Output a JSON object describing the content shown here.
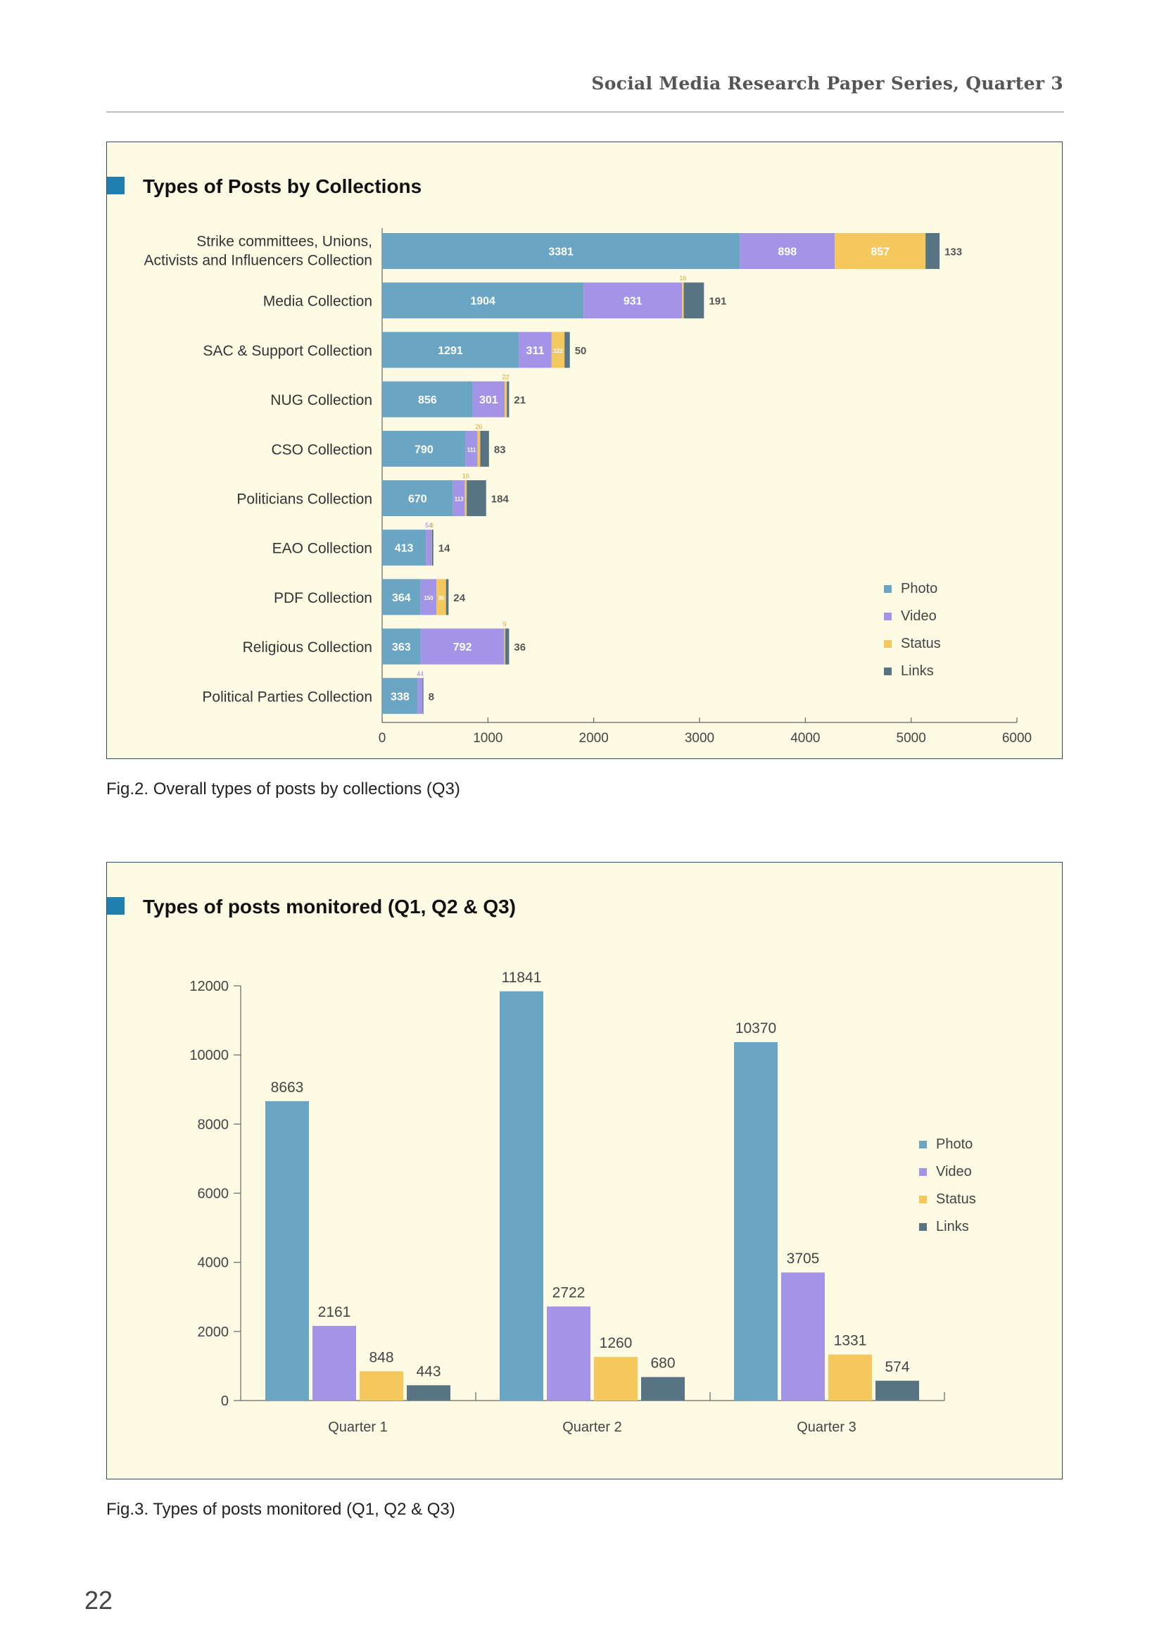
{
  "header": {
    "title": "Social Media Research Paper Series, Quarter 3"
  },
  "page_number": "22",
  "colors": {
    "photo": "#6aa5c3",
    "video": "#a394e8",
    "status": "#f5c85e",
    "links": "#587483",
    "panel_bg": "#fdfbe4",
    "title_marker": "#1f7fb0"
  },
  "figures": [
    {
      "title": "Types of Posts by Collections",
      "caption": "Fig.2. Overall types of posts by collections (Q3)"
    },
    {
      "title": "Types of posts monitored (Q1, Q2 & Q3)",
      "caption": "Fig.3. Types of posts monitored (Q1, Q2 & Q3)"
    }
  ],
  "chart_data": [
    {
      "type": "bar",
      "orientation": "horizontal",
      "stacked": true,
      "title": "Types of Posts by Collections",
      "categories": [
        "Strike committees, Unions,|Activists and Influencers Collection",
        "Media Collection",
        "SAC & Support Collection",
        "NUG Collection",
        "CSO Collection",
        "Politicians Collection",
        "EAO Collection",
        "PDF Collection",
        "Religious Collection",
        "Political Parties Collection"
      ],
      "series": [
        {
          "name": "Photo",
          "values": [
            3381,
            1904,
            1291,
            856,
            790,
            670,
            413,
            364,
            363,
            338
          ]
        },
        {
          "name": "Video",
          "values": [
            898,
            931,
            311,
            301,
            111,
            113,
            54,
            150,
            792,
            44
          ]
        },
        {
          "name": "Status",
          "values": [
            857,
            16,
            122,
            22,
            26,
            16,
            3,
            90,
            9,
            0
          ]
        },
        {
          "name": "Links",
          "values": [
            133,
            191,
            50,
            21,
            83,
            184,
            14,
            24,
            36,
            8
          ]
        }
      ],
      "xlim": [
        0,
        6000
      ],
      "xticks": [
        0,
        1000,
        2000,
        3000,
        4000,
        5000,
        6000
      ],
      "legend": "bottom-right"
    },
    {
      "type": "bar",
      "title": "Types of posts monitored (Q1, Q2 & Q3)",
      "categories": [
        "Quarter 1",
        "Quarter 2",
        "Quarter 3"
      ],
      "series": [
        {
          "name": "Photo",
          "values": [
            8663,
            11841,
            10370
          ]
        },
        {
          "name": "Video",
          "values": [
            2161,
            2722,
            3705
          ]
        },
        {
          "name": "Status",
          "values": [
            848,
            1260,
            1331
          ]
        },
        {
          "name": "Links",
          "values": [
            443,
            680,
            574
          ]
        }
      ],
      "ylim": [
        0,
        12000
      ],
      "yticks": [
        0,
        2000,
        4000,
        6000,
        8000,
        10000,
        12000
      ],
      "legend": "right"
    }
  ]
}
